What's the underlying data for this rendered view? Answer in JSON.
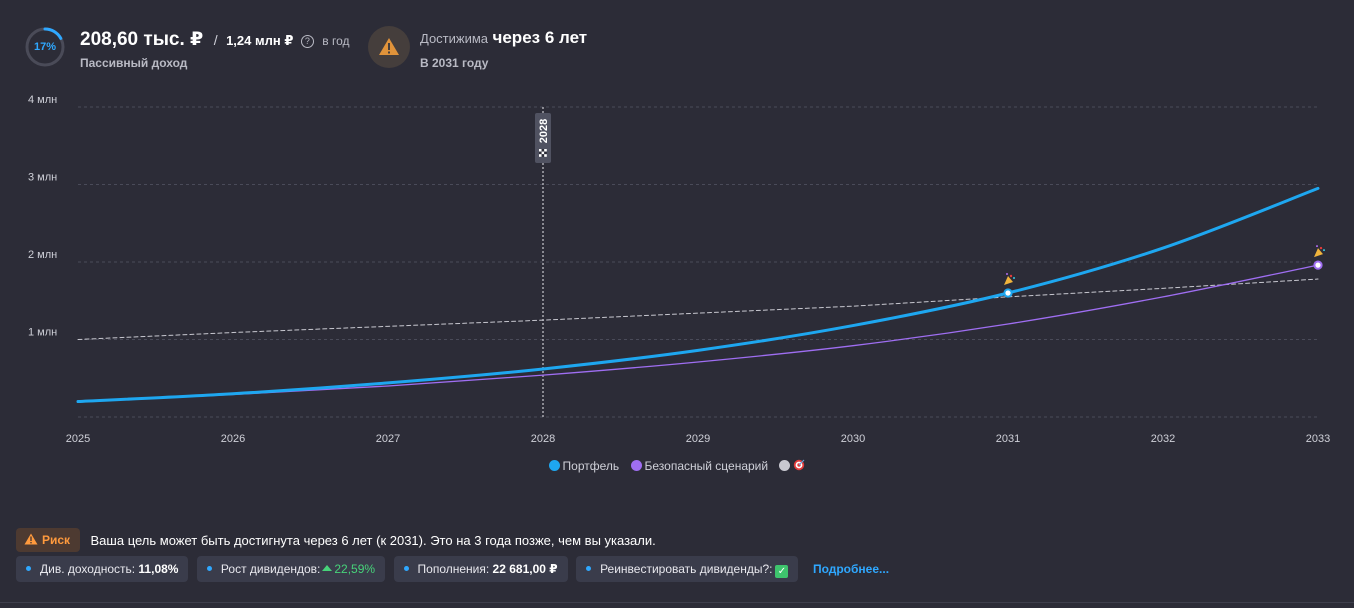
{
  "header": {
    "progress_percent": 17,
    "progress_label": "17%",
    "income_value": "208,60 тыс. ₽",
    "income_goal": "1,24 млн ₽",
    "income_period": "в год",
    "income_caption": "Пассивный доход",
    "reach_prefix": "Достижима",
    "reach_value": "через 6 лет",
    "reach_caption": "В 2031 году"
  },
  "chart_data": {
    "type": "line",
    "x": [
      2025,
      2026,
      2027,
      2028,
      2029,
      2030,
      2031,
      2032,
      2033
    ],
    "x_tick_labels": [
      "2025",
      "2026",
      "2027",
      "2028",
      "2029",
      "2030",
      "2031",
      "2032",
      "2033"
    ],
    "y_tick_labels": [
      "1 млн",
      "2 млн",
      "3 млн",
      "4 млн"
    ],
    "y_ticks": [
      1,
      2,
      3,
      4
    ],
    "ylim": [
      0,
      4
    ],
    "y_unit": "млн ₽",
    "grid": true,
    "legend_position": "bottom-center",
    "series": [
      {
        "name": "Портфель",
        "color": "#1ea7f0",
        "width": 3,
        "values": [
          0.2,
          0.3,
          0.44,
          0.62,
          0.86,
          1.18,
          1.6,
          2.18,
          2.95
        ]
      },
      {
        "name": "Безопасный сценарий",
        "color": "#9f6ef2",
        "width": 1.3,
        "values": [
          0.2,
          0.29,
          0.4,
          0.54,
          0.71,
          0.92,
          1.2,
          1.55,
          1.96
        ]
      },
      {
        "name": "",
        "color": "#c8c8d0",
        "width": 1,
        "dashed": true,
        "values": [
          1.0,
          1.09,
          1.17,
          1.25,
          1.34,
          1.43,
          1.55,
          1.66,
          1.78
        ]
      }
    ],
    "goal_icon": "target-icon",
    "marker": {
      "x": 2028,
      "label": "2028",
      "icon": "checkered-flag-icon"
    },
    "milestones": [
      {
        "x": 2031,
        "y": 1.6,
        "color": "#1ea7f0",
        "icon": "party-popper-icon"
      },
      {
        "x": 2033,
        "y": 1.96,
        "color": "#9f6ef2",
        "icon": "party-popper-icon"
      }
    ]
  },
  "risk": {
    "badge": "Риск",
    "message": "Ваша цель может быть достигнута через 6 лет (к 2031). Это на 3 года позже, чем вы указали."
  },
  "chips": {
    "yield_label": "Див. доходность:",
    "yield_value": "11,08%",
    "growth_label": "Рост дивидендов:",
    "growth_value": "22,59%",
    "topup_label": "Пополнения:",
    "topup_value": "22 681,00 ₽",
    "reinvest_label": "Реинвестировать дивиденды?:",
    "more_link": "Подробнее..."
  },
  "colors": {
    "background": "#2c2c37",
    "accent": "#2fa8ff",
    "warning": "#ff9a3d",
    "positive": "#47d37a"
  }
}
